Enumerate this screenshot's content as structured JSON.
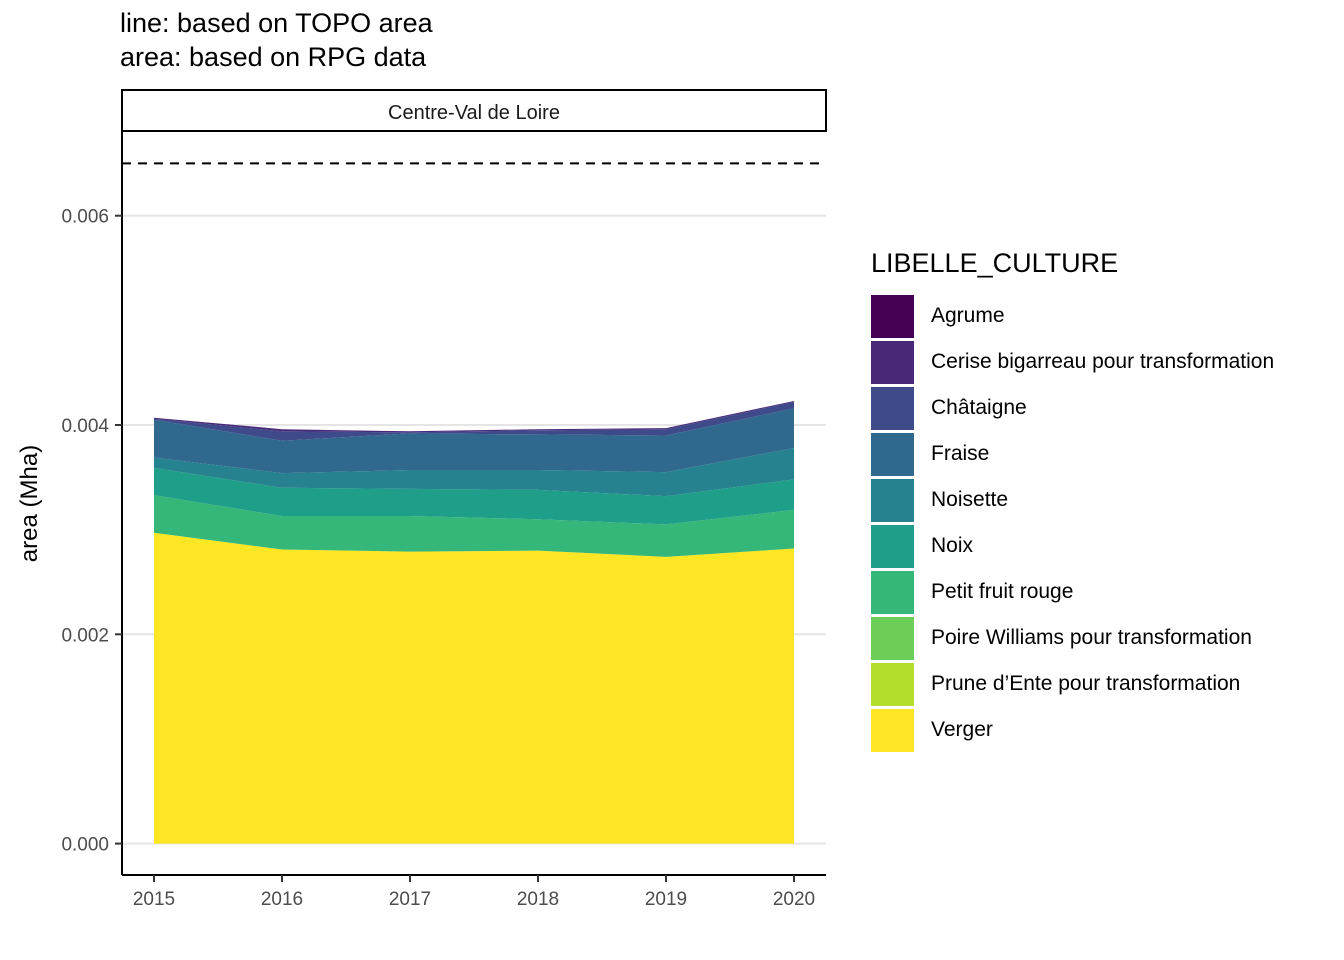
{
  "title_lines": [
    "line: based on TOPO area",
    "area: based on RPG data"
  ],
  "chart_data": {
    "type": "area",
    "stacked": true,
    "facet_label": "Centre-Val de Loire",
    "title": "line: based on TOPO area\narea: based on RPG data",
    "xlabel": "",
    "ylabel": "area (Mha)",
    "x": [
      2015,
      2016,
      2017,
      2018,
      2019,
      2020
    ],
    "x_ticks": [
      "2015",
      "2016",
      "2017",
      "2018",
      "2019",
      "2020"
    ],
    "y_ticks": [
      "0.000",
      "0.002",
      "0.004",
      "0.006"
    ],
    "ylim": [
      -0.0003,
      0.0068
    ],
    "grid": "horizontal-major",
    "legend_title": "LIBELLE_CULTURE",
    "legend_position": "right",
    "reference_line": {
      "style": "dashed",
      "value": 0.0065
    },
    "series": [
      {
        "name": "Agrume",
        "color": "#440154",
        "values": [
          0,
          0,
          0,
          0,
          0,
          0
        ]
      },
      {
        "name": "Cerise bigarreau pour transformation",
        "color": "#482878",
        "values": [
          1e-05,
          2e-05,
          1e-05,
          1e-05,
          1e-05,
          1e-05
        ]
      },
      {
        "name": "Châtaigne",
        "color": "#3E4A89",
        "values": [
          1e-05,
          9e-05,
          1e-05,
          4e-05,
          6e-05,
          6e-05
        ]
      },
      {
        "name": "Fraise",
        "color": "#31688E",
        "values": [
          0.00036,
          0.00031,
          0.00035,
          0.00034,
          0.00035,
          0.00038
        ]
      },
      {
        "name": "Noisette",
        "color": "#26828E",
        "values": [
          0.0001,
          0.00014,
          0.00018,
          0.00019,
          0.00023,
          0.0003
        ]
      },
      {
        "name": "Noix",
        "color": "#1F9E89",
        "values": [
          0.00026,
          0.00027,
          0.00026,
          0.00028,
          0.00027,
          0.00029
        ]
      },
      {
        "name": "Petit fruit rouge",
        "color": "#35B779",
        "values": [
          0.00036,
          0.00032,
          0.00034,
          0.0003,
          0.00031,
          0.00037
        ]
      },
      {
        "name": "Poire Williams pour transformation",
        "color": "#6DCD59",
        "values": [
          0,
          0,
          0,
          0,
          0,
          0
        ]
      },
      {
        "name": "Prune d’Ente pour transformation",
        "color": "#B4DE2C",
        "values": [
          0,
          0,
          0,
          0,
          0,
          0
        ]
      },
      {
        "name": "Verger",
        "color": "#FDE725",
        "values": [
          0.00297,
          0.00281,
          0.00279,
          0.0028,
          0.00274,
          0.00282
        ]
      }
    ]
  }
}
